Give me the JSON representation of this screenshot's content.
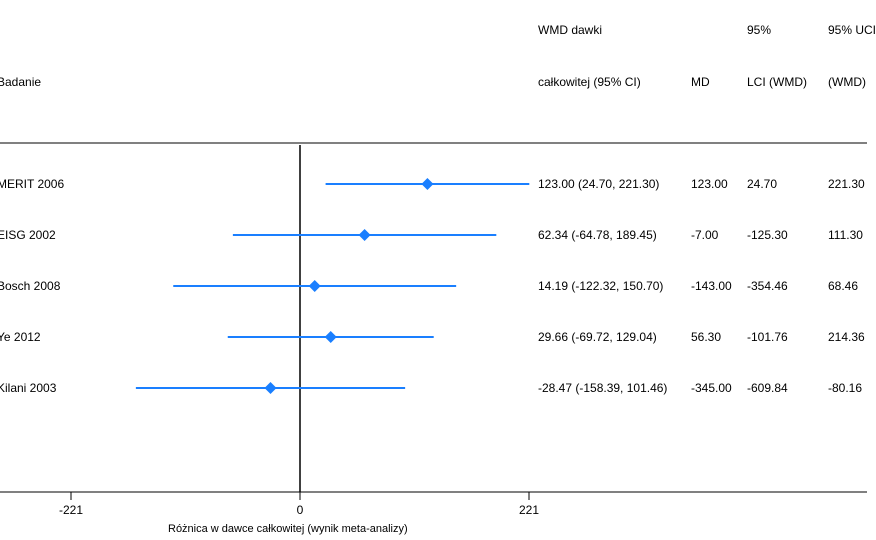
{
  "header": {
    "study_label": "Badanie",
    "wmd_line1": "WMD dawki",
    "wmd_line2": "całkowitej (95% CI)",
    "md_label": "MD",
    "lci_line1": "95%",
    "lci_line2": "LCI (WMD)",
    "uci_line1": "95% UCI",
    "uci_line2": "(WMD)"
  },
  "colors": {
    "accent": "#1a7fff",
    "axis": "#000000"
  },
  "chart_data": {
    "type": "forest",
    "xlabel": "Różnica w dawce całkowitej (wynik meta-analizy)",
    "xlim": [
      -288,
      221
    ],
    "xticks": [
      -221,
      0,
      221
    ],
    "xtick_labels": [
      "-221",
      "0",
      "221"
    ],
    "rows": [
      {
        "study": "MERIT 2006",
        "estimate": 123.0,
        "lower": 24.7,
        "upper": 221.3,
        "ci_text": "123.00 (24.70, 221.30)",
        "md": "123.00",
        "lci": "24.70",
        "uci": "221.30"
      },
      {
        "study": "EISG 2002",
        "estimate": 62.34,
        "lower": -64.78,
        "upper": 189.45,
        "ci_text": "62.34 (-64.78, 189.45)",
        "md": "-7.00",
        "lci": "-125.30",
        "uci": "111.30"
      },
      {
        "study": "Bosch 2008",
        "estimate": 14.19,
        "lower": -122.32,
        "upper": 150.7,
        "ci_text": "14.19 (-122.32, 150.70)",
        "md": "-143.00",
        "lci": "-354.46",
        "uci": "68.46"
      },
      {
        "study": "Ye 2012",
        "estimate": 29.66,
        "lower": -69.72,
        "upper": 129.04,
        "ci_text": "29.66 (-69.72, 129.04)",
        "md": "56.30",
        "lci": "-101.76",
        "uci": "214.36"
      },
      {
        "study": "Kilani 2003",
        "estimate": -28.47,
        "lower": -158.39,
        "upper": 101.46,
        "ci_text": "-28.47 (-158.39, 101.46)",
        "md": "-345.00",
        "lci": "-609.84",
        "uci": "-80.16"
      }
    ]
  }
}
